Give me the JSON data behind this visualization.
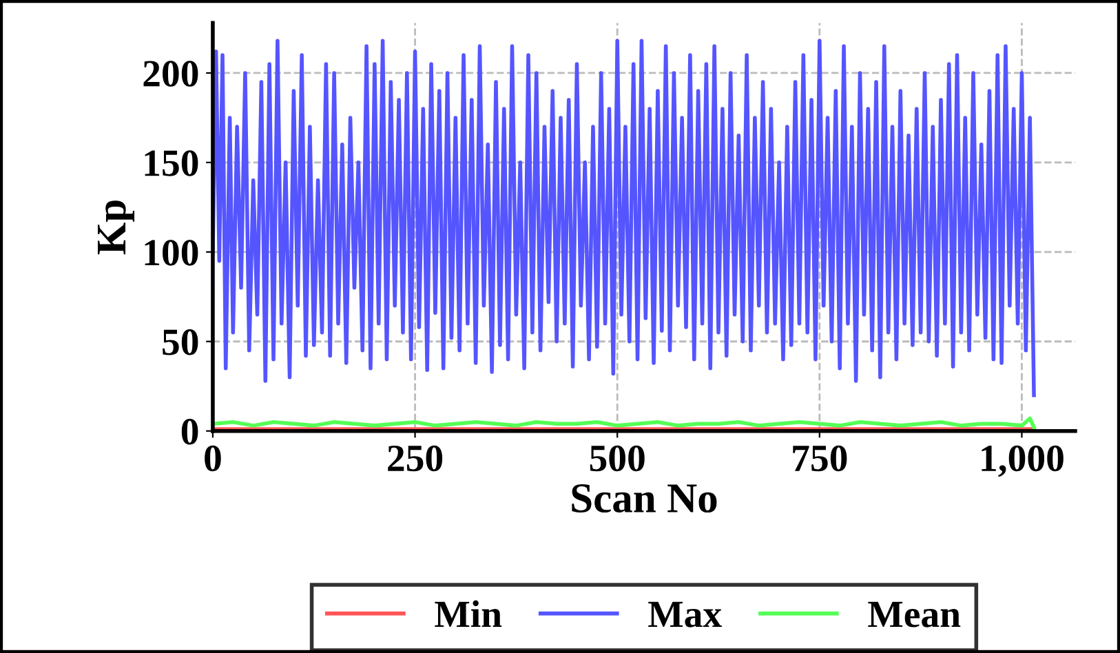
{
  "chart_data": {
    "type": "line",
    "xlabel": "Scan No",
    "ylabel": "Kp",
    "xlim": [
      0,
      1066
    ],
    "ylim": [
      0,
      228
    ],
    "xticks": [
      0,
      250,
      500,
      750,
      {
        "value": 1000,
        "label": "1,000"
      }
    ],
    "yticks": [
      0,
      50,
      100,
      150,
      200
    ],
    "grid": true,
    "legend": "bottom",
    "marker": "none",
    "line_style": "solid",
    "series": [
      {
        "name": "Min",
        "color": "#ff5555",
        "x": [
          0,
          250,
          500,
          750,
          1015
        ],
        "values": [
          1,
          1,
          1,
          1,
          1
        ]
      },
      {
        "name": "Max",
        "color": "#5555ff",
        "x": [
          0,
          4,
          8,
          12,
          16,
          21,
          25,
          30,
          35,
          40,
          45,
          50,
          55,
          60,
          65,
          70,
          75,
          80,
          85,
          90,
          95,
          100,
          105,
          110,
          115,
          120,
          125,
          130,
          135,
          140,
          145,
          150,
          155,
          160,
          165,
          170,
          175,
          180,
          185,
          190,
          195,
          200,
          205,
          210,
          215,
          220,
          225,
          230,
          235,
          240,
          245,
          250,
          255,
          260,
          265,
          270,
          275,
          280,
          285,
          290,
          295,
          300,
          305,
          310,
          315,
          320,
          325,
          330,
          335,
          340,
          345,
          350,
          355,
          360,
          365,
          370,
          375,
          380,
          385,
          390,
          395,
          400,
          405,
          410,
          415,
          420,
          425,
          430,
          435,
          440,
          445,
          450,
          455,
          460,
          465,
          470,
          475,
          480,
          485,
          490,
          495,
          500,
          505,
          510,
          515,
          520,
          525,
          530,
          535,
          540,
          545,
          550,
          555,
          560,
          565,
          570,
          575,
          580,
          585,
          590,
          595,
          600,
          605,
          610,
          615,
          620,
          625,
          630,
          635,
          640,
          645,
          650,
          655,
          660,
          665,
          670,
          675,
          680,
          685,
          690,
          695,
          700,
          705,
          710,
          715,
          720,
          725,
          730,
          735,
          740,
          745,
          750,
          755,
          760,
          765,
          770,
          775,
          780,
          785,
          790,
          795,
          800,
          805,
          810,
          815,
          820,
          825,
          830,
          835,
          840,
          845,
          850,
          855,
          860,
          865,
          870,
          875,
          880,
          885,
          890,
          895,
          900,
          905,
          910,
          915,
          920,
          925,
          930,
          935,
          940,
          945,
          950,
          955,
          960,
          965,
          970,
          975,
          980,
          985,
          990,
          995,
          1000,
          1005,
          1010,
          1015
        ],
        "values": [
          100,
          212,
          95,
          210,
          35,
          175,
          55,
          170,
          80,
          200,
          45,
          140,
          65,
          195,
          28,
          205,
          40,
          218,
          60,
          150,
          30,
          190,
          70,
          210,
          42,
          170,
          48,
          140,
          55,
          205,
          42,
          200,
          60,
          160,
          38,
          175,
          80,
          150,
          45,
          215,
          35,
          205,
          60,
          218,
          40,
          195,
          70,
          185,
          55,
          200,
          40,
          212,
          58,
          180,
          34,
          205,
          66,
          190,
          35,
          200,
          52,
          175,
          45,
          210,
          60,
          185,
          38,
          215,
          70,
          160,
          33,
          195,
          48,
          180,
          40,
          215,
          65,
          150,
          35,
          210,
          55,
          200,
          45,
          170,
          72,
          190,
          50,
          175,
          60,
          185,
          36,
          205,
          70,
          150,
          40,
          170,
          47,
          200,
          60,
          180,
          32,
          218,
          65,
          170,
          50,
          205,
          40,
          218,
          63,
          180,
          38,
          190,
          56,
          215,
          45,
          200,
          70,
          175,
          58,
          210,
          40,
          190,
          60,
          205,
          35,
          215,
          55,
          180,
          42,
          200,
          65,
          165,
          50,
          210,
          45,
          175,
          70,
          195,
          55,
          180,
          60,
          150,
          40,
          170,
          48,
          195,
          60,
          210,
          55,
          185,
          40,
          218,
          70,
          175,
          50,
          190,
          35,
          215,
          60,
          170,
          28,
          200,
          65,
          180,
          45,
          195,
          30,
          215,
          55,
          170,
          40,
          190,
          60,
          165,
          48,
          180,
          55,
          200,
          50,
          170,
          42,
          185,
          60,
          205,
          36,
          210,
          55,
          175,
          45,
          200,
          65,
          160,
          52,
          190,
          40,
          210,
          38,
          215,
          70,
          180,
          60,
          200,
          45,
          175,
          20
        ]
      },
      {
        "name": "Mean",
        "color": "#55ff55",
        "x": [
          0,
          25,
          50,
          75,
          100,
          125,
          150,
          175,
          200,
          225,
          250,
          275,
          300,
          325,
          350,
          375,
          400,
          425,
          450,
          475,
          500,
          525,
          550,
          575,
          600,
          625,
          650,
          675,
          700,
          725,
          750,
          775,
          800,
          825,
          850,
          875,
          900,
          925,
          950,
          975,
          1000,
          1010,
          1015
        ],
        "values": [
          4,
          5,
          3,
          5,
          4,
          3,
          5,
          4,
          3,
          4,
          5,
          3,
          4,
          5,
          4,
          3,
          5,
          4,
          4,
          5,
          3,
          4,
          5,
          3,
          4,
          4,
          5,
          3,
          4,
          5,
          4,
          3,
          5,
          4,
          3,
          4,
          5,
          3,
          4,
          4,
          3,
          7,
          2
        ]
      }
    ]
  }
}
